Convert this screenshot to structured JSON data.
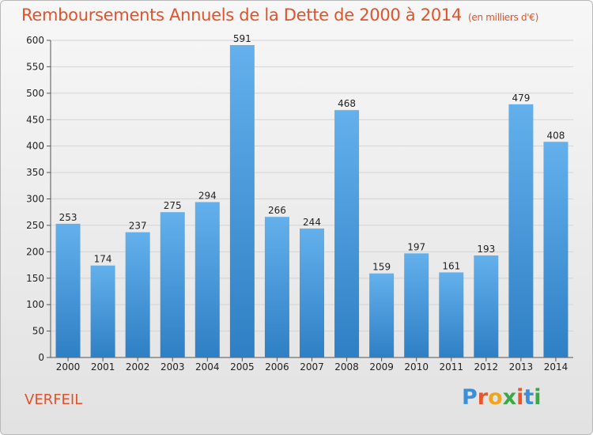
{
  "title": "Remboursements Annuels de la Dette de 2000 à 2014",
  "subtitle": "(en milliers d'€)",
  "place": "VERFEIL",
  "logo": {
    "letters": [
      "P",
      "r",
      "o",
      "x",
      "i",
      "t",
      "i"
    ],
    "colors": [
      "#3a8fd8",
      "#e8572a",
      "#f2a51a",
      "#3aa845",
      "#e8572a",
      "#3a8fd8",
      "#3aa845"
    ]
  },
  "colors": {
    "bar_light": "#63b0ec",
    "bar_dark": "#2f7fc4",
    "grid": "#d4d4d4",
    "accent": "#e0532a"
  },
  "chart_data": {
    "type": "bar",
    "title": "Remboursements Annuels de la Dette de 2000 à 2014",
    "subtitle": "(en milliers d'€)",
    "categories": [
      "2000",
      "2001",
      "2002",
      "2003",
      "2004",
      "2005",
      "2006",
      "2007",
      "2008",
      "2009",
      "2010",
      "2011",
      "2012",
      "2013",
      "2014"
    ],
    "values": [
      253,
      174,
      237,
      275,
      294,
      591,
      266,
      244,
      468,
      159,
      197,
      161,
      193,
      479,
      408
    ],
    "yticks": [
      0,
      50,
      100,
      150,
      200,
      250,
      300,
      350,
      400,
      450,
      500,
      550,
      600
    ],
    "ylim": [
      0,
      600
    ],
    "grid": true,
    "xlabel": "",
    "ylabel": ""
  }
}
